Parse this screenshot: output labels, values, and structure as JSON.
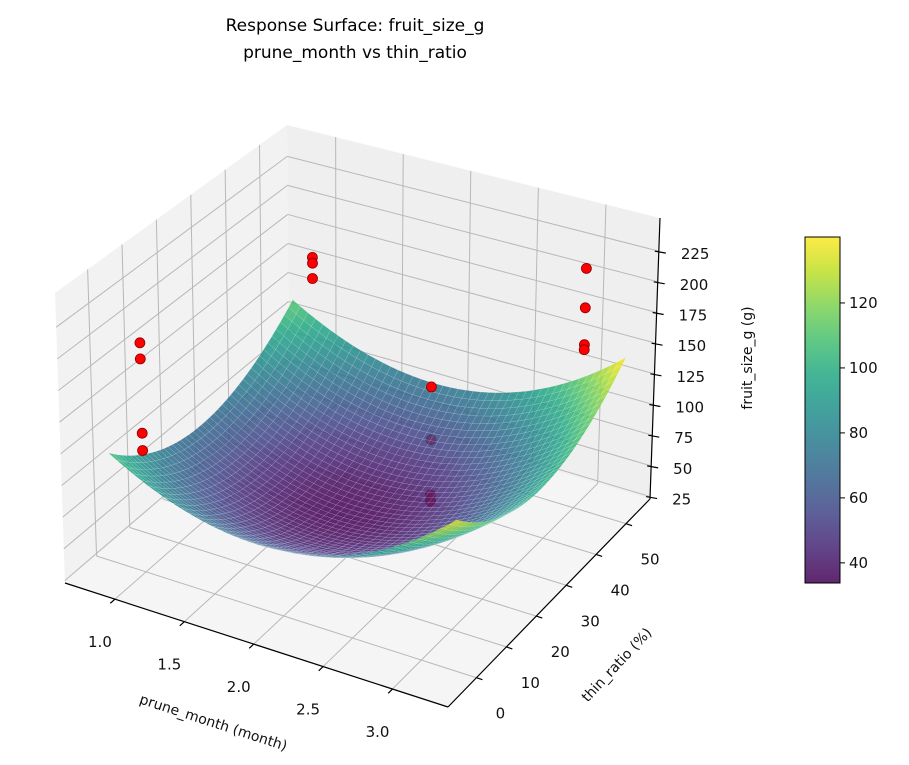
{
  "chart_data": {
    "type": "surface",
    "title_lines": [
      "Response Surface: fruit_size_g",
      "prune_month vs thin_ratio"
    ],
    "xlabel": "prune_month (month)",
    "ylabel": "thin_ratio (%)",
    "zlabel": "fruit_size_g (g)",
    "xlim": [
      0.64,
      3.4
    ],
    "ylim": [
      -9.5,
      58
    ],
    "zlim": [
      23,
      252
    ],
    "xticks": [
      1.0,
      1.5,
      2.0,
      2.5,
      3.0
    ],
    "xtick_labels": [
      "1.0",
      "1.5",
      "2.0",
      "2.5",
      "3.0"
    ],
    "yticks": [
      0,
      10,
      20,
      30,
      40,
      50
    ],
    "ytick_labels": [
      "0",
      "10",
      "20",
      "30",
      "40",
      "50"
    ],
    "zticks": [
      25,
      50,
      75,
      100,
      125,
      150,
      175,
      200,
      225
    ],
    "ztick_labels": [
      "25",
      "50",
      "75",
      "100",
      "125",
      "150",
      "175",
      "200",
      "225"
    ],
    "grid": true,
    "surface": {
      "x_range": [
        0.75,
        3.25
      ],
      "y_range": [
        0,
        55
      ],
      "model": "z = b0 + b1*x + b2*y + b11*x^2 + b22*y^2",
      "coefficients": {
        "b0": 178.3,
        "b1": -116.4,
        "b2": -2.8545,
        "b11": 32.0,
        "b22": 0.052893
      },
      "colormap": "viridis",
      "alpha": 0.85
    },
    "points": [
      {
        "x": 0.75,
        "y": 10,
        "z": 176
      },
      {
        "x": 0.75,
        "y": 10,
        "z": 163
      },
      {
        "x": 0.75,
        "y": 10,
        "z": 103
      },
      {
        "x": 0.75,
        "y": 10,
        "z": 89
      },
      {
        "x": 0.9,
        "y": 55,
        "z": 153
      },
      {
        "x": 0.9,
        "y": 55,
        "z": 148
      },
      {
        "x": 0.9,
        "y": 55,
        "z": 135
      },
      {
        "x": 2.5,
        "y": 25,
        "z": 163
      },
      {
        "x": 2.5,
        "y": 25,
        "z": 121
      },
      {
        "x": 2.5,
        "y": 25,
        "z": 77
      },
      {
        "x": 2.5,
        "y": 25,
        "z": 72
      },
      {
        "x": 3.05,
        "y": 50,
        "z": 219
      },
      {
        "x": 3.05,
        "y": 50,
        "z": 187
      },
      {
        "x": 3.05,
        "y": 50,
        "z": 157
      },
      {
        "x": 3.05,
        "y": 50,
        "z": 153
      }
    ],
    "point_color": "#ff0000",
    "point_edge_color": "#8b0000",
    "colorbar": {
      "range": [
        33.8,
        140.3
      ],
      "ticks": [
        40,
        60,
        80,
        100,
        120
      ],
      "tick_labels": [
        "40",
        "60",
        "80",
        "100",
        "120"
      ]
    }
  }
}
